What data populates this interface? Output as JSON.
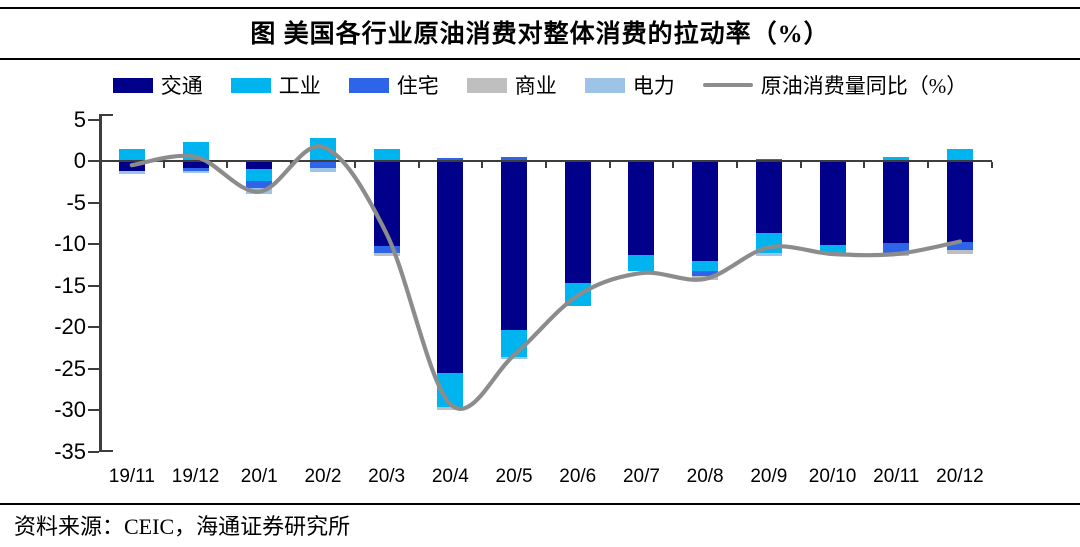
{
  "title": "图 美国各行业原油消费对整体消费的拉动率（%）",
  "source": "资料来源：CEIC，海通证券研究所",
  "colors": {
    "transport": "#00008B",
    "industry": "#00B4F0",
    "residential": "#2E64E8",
    "commercial": "#BFBFBF",
    "electric": "#9DC3E6",
    "yoy_line": "#8C8C8C",
    "axis": "#3d3d3d",
    "rule": "#000000"
  },
  "chart_data": {
    "type": "bar",
    "subtype": "stacked-bars-with-line-overlay",
    "title": "图 美国各行业原油消费对整体消费的拉动率（%）",
    "xlabel": "",
    "ylabel": "",
    "ylim": [
      -35,
      5
    ],
    "yticks": [
      5,
      0,
      -5,
      -10,
      -15,
      -20,
      -25,
      -30,
      -35
    ],
    "grid": false,
    "legend_position": "top",
    "categories": [
      "19/11",
      "19/12",
      "20/1",
      "20/2",
      "20/3",
      "20/4",
      "20/5",
      "20/6",
      "20/7",
      "20/8",
      "20/9",
      "20/10",
      "20/11",
      "20/12"
    ],
    "series": [
      {
        "key": "transport",
        "name": "交通",
        "type": "bar",
        "color": "#00008B",
        "values": [
          -1.2,
          -0.8,
          -1.0,
          0,
          -10.3,
          -25.6,
          -20.4,
          -14.7,
          -11.3,
          -12.1,
          -8.7,
          -10.1,
          -9.9,
          -9.7
        ]
      },
      {
        "key": "industry",
        "name": "工业",
        "type": "bar",
        "color": "#00B4F0",
        "values": [
          1.5,
          2.3,
          -1.4,
          2.8,
          1.4,
          -4.0,
          -3.2,
          -2.8,
          -2.0,
          -1.2,
          -2.4,
          -1.0,
          0.5,
          1.5
        ]
      },
      {
        "key": "residential",
        "name": "住宅",
        "type": "bar",
        "color": "#2E64E8",
        "values": [
          0,
          -0.4,
          -0.9,
          -0.9,
          -0.8,
          0.4,
          0.5,
          0,
          0,
          -0.6,
          0.3,
          0,
          -1.2,
          -1.0
        ]
      },
      {
        "key": "commercial",
        "name": "商业",
        "type": "bar",
        "color": "#BFBFBF",
        "values": [
          0,
          0,
          0,
          0,
          -0.3,
          -0.4,
          0,
          0,
          0,
          -0.4,
          0,
          0,
          0,
          -0.5
        ]
      },
      {
        "key": "electric",
        "name": "电力",
        "type": "bar",
        "color": "#9DC3E6",
        "values": [
          -0.4,
          -0.3,
          -0.7,
          -0.4,
          0,
          0,
          -0.3,
          0,
          0,
          0,
          -0.3,
          0,
          -0.3,
          0
        ]
      },
      {
        "key": "oil-yoy",
        "name": "原油消费量同比（%）",
        "type": "line",
        "color": "#8C8C8C",
        "values": [
          -0.5,
          0.5,
          -3.7,
          1.7,
          -8.8,
          -29.3,
          -23.4,
          -16.2,
          -13.5,
          -14.2,
          -10.4,
          -11.2,
          -11.2,
          -9.7
        ]
      }
    ]
  }
}
